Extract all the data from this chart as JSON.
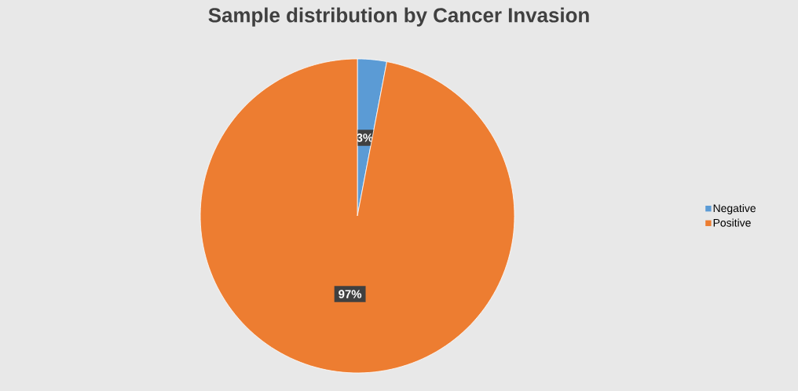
{
  "chart_data": {
    "type": "pie",
    "title": "Sample distribution by Cancer Invasion",
    "categories": [
      "Negative",
      "Positive"
    ],
    "values": [
      3,
      97
    ],
    "colors": [
      "#5b9bd5",
      "#ed7d31"
    ],
    "value_labels": [
      "3%",
      "97%"
    ],
    "legend": "right"
  }
}
